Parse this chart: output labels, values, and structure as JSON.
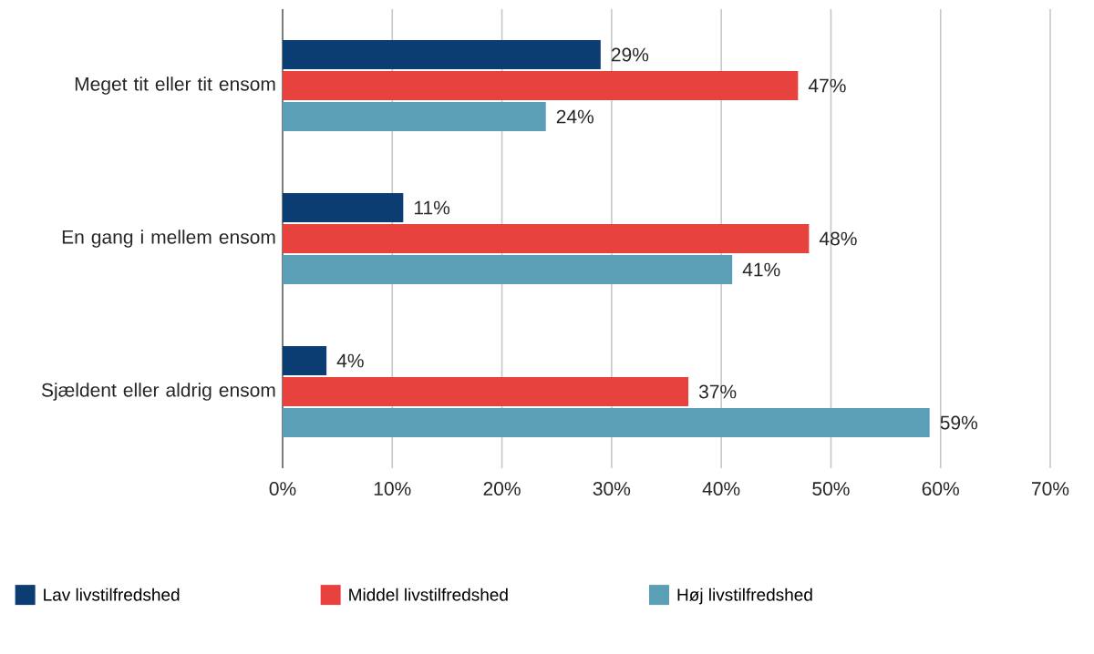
{
  "chart_data": {
    "type": "bar",
    "orientation": "horizontal",
    "categories": [
      "Meget tit eller tit ensom",
      "En gang i mellem ensom",
      "Sjældent eller aldrig ensom"
    ],
    "series": [
      {
        "name": "Lav livstilfredshed",
        "color": "#0b3c72",
        "values": [
          29,
          11,
          4
        ],
        "value_labels": [
          "29%",
          "11%",
          "4%"
        ]
      },
      {
        "name": "Middel livstilfredshed",
        "color": "#e8423f",
        "values": [
          47,
          48,
          37
        ],
        "value_labels": [
          "47%",
          "48%",
          "37%"
        ]
      },
      {
        "name": "Høj livstilfredshed",
        "color": "#5a9fb5",
        "values": [
          24,
          41,
          59
        ],
        "value_labels": [
          "24%",
          "41%",
          "59%"
        ]
      }
    ],
    "xlim": [
      0,
      70
    ],
    "xticks": [
      {
        "value": 0,
        "label": "0%"
      },
      {
        "value": 10,
        "label": "10%"
      },
      {
        "value": 20,
        "label": "20%"
      },
      {
        "value": 30,
        "label": "30%"
      },
      {
        "value": 40,
        "label": "40%"
      },
      {
        "value": 50,
        "label": "50%"
      },
      {
        "value": 60,
        "label": "60%"
      },
      {
        "value": 70,
        "label": "70%"
      }
    ],
    "grid": "x",
    "legend": "bottom"
  }
}
